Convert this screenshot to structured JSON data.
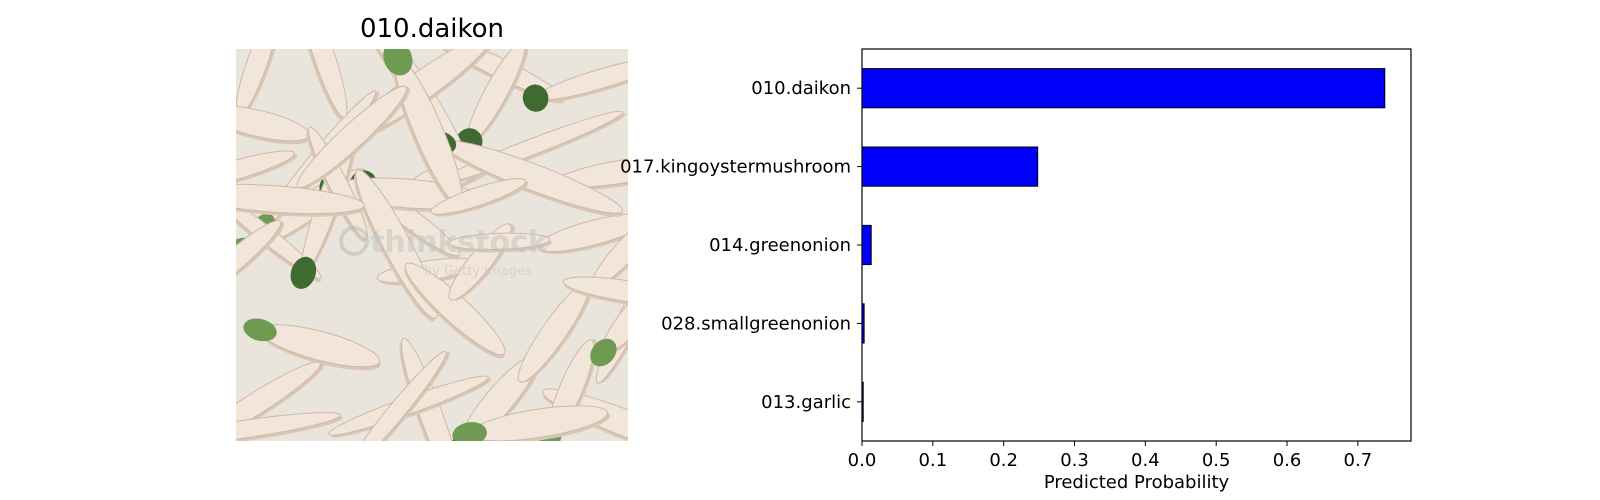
{
  "image_panel": {
    "title": "010.daikon",
    "watermark_text": "thinkstock",
    "watermark_subtext": "by Getty Images",
    "colors": {
      "background": "#e9e5dc",
      "radish": "#f2e6da",
      "radish_shadow": "#d9c6b4",
      "leaf": "#6f9a52",
      "leaf_dark": "#3f6b33"
    }
  },
  "chart_data": {
    "type": "bar",
    "orientation": "horizontal",
    "categories": [
      "010.daikon",
      "017.kingoystermushroom",
      "014.greenonion",
      "028.smallgreenonion",
      "013.garlic"
    ],
    "values": [
      0.738,
      0.248,
      0.013,
      0.003,
      0.001
    ],
    "xlabel": "Predicted Probability",
    "ylabel": "",
    "xlim": [
      0,
      0.775
    ],
    "xticks": [
      0.0,
      0.1,
      0.2,
      0.3,
      0.4,
      0.5,
      0.6,
      0.7
    ],
    "xtick_labels": [
      "0.0",
      "0.1",
      "0.2",
      "0.3",
      "0.4",
      "0.5",
      "0.6",
      "0.7"
    ],
    "bar_color": "#0000ff",
    "bar_edge_color": "#000000",
    "grid": false
  }
}
